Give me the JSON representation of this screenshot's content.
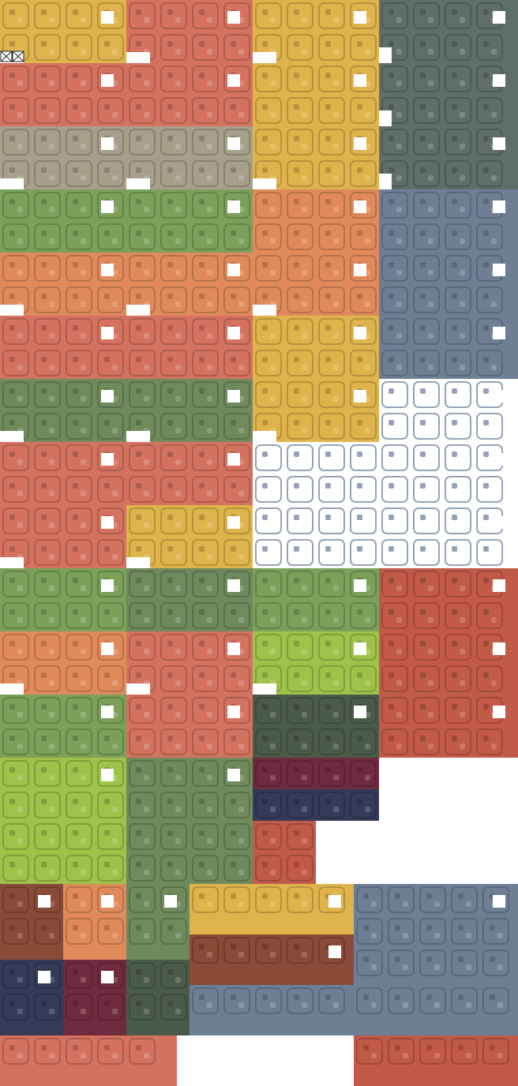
{
  "tileset": {
    "palette": {
      "yellow": "#e0b44c",
      "salmon": "#d4725f",
      "terracotta": "#e08a5c",
      "olive_green": "#7ba05a",
      "moss": "#6f8a5c",
      "lime": "#9ec24a",
      "dark_moss": "#4a5a48",
      "slate_blue": "#6e7f95",
      "slate_gray": "#5f6e6a",
      "brick": "#c25a48",
      "plum": "#6e2a3e",
      "navy": "#343a58",
      "brown": "#8a4a38",
      "pebble": "#a6a08a",
      "white": "#ffffff"
    },
    "empty_slot_icons": [
      "empty-slot-icon",
      "empty-slot-icon"
    ]
  }
}
